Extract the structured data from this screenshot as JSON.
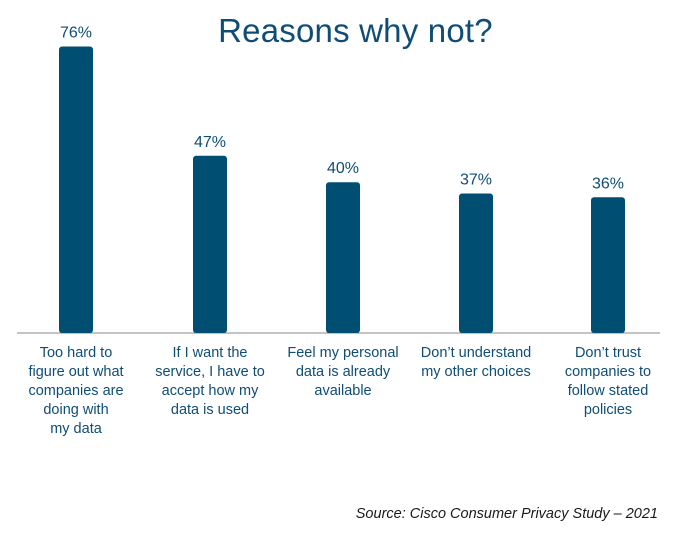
{
  "chart_data": {
    "type": "bar",
    "title": "Reasons why not?",
    "categories": [
      "Too hard to figure out what companies are doing with my data",
      "If I want the service, I have to accept how my data is used",
      "Feel my personal data is already available",
      "Don’t understand my other choices",
      "Don’t trust companies to follow stated policies"
    ],
    "category_lines": [
      [
        "Too hard to",
        "figure out what",
        "companies are",
        "doing with",
        "my data"
      ],
      [
        "If I want the",
        "service, I have to",
        "accept how my",
        "data is used"
      ],
      [
        "Feel my personal",
        "data is already",
        "available"
      ],
      [
        "Don’t understand",
        "my other choices"
      ],
      [
        "Don’t trust",
        "companies to",
        "follow stated",
        "policies"
      ]
    ],
    "values": [
      76,
      47,
      40,
      37,
      36
    ],
    "value_labels": [
      "76%",
      "47%",
      "40%",
      "37%",
      "36%"
    ],
    "ylim": [
      0,
      100
    ],
    "grid": false,
    "xlabel": "",
    "ylabel": "",
    "bar_color": "#004f72",
    "text_color": "#0f4d75",
    "source": "Source: Cisco Consumer Privacy Study – 2021"
  }
}
